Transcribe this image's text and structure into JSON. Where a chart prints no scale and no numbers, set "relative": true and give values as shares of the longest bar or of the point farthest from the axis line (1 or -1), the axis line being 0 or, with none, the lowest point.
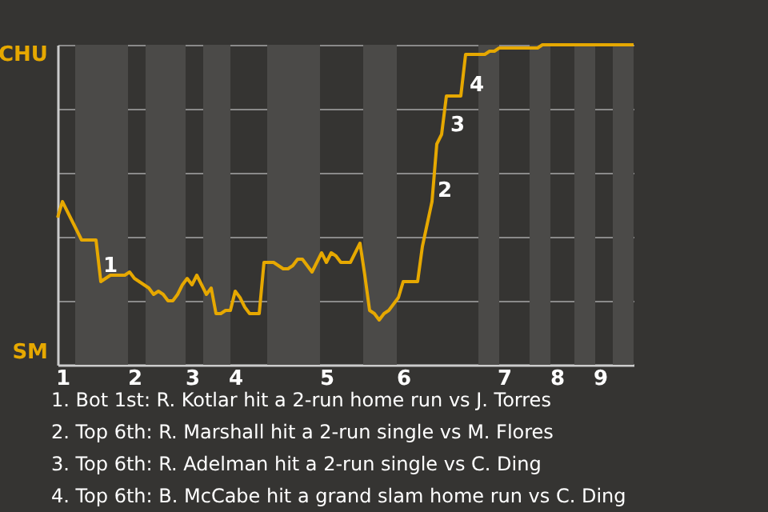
{
  "chart_data": {
    "type": "line",
    "relative": true,
    "categories": [
      null,
      "1",
      null,
      null,
      null,
      null,
      null,
      null,
      null,
      null,
      null,
      null,
      null,
      null,
      null,
      null,
      "2",
      null,
      null,
      null,
      null,
      null,
      null,
      null,
      null,
      null,
      null,
      null,
      "3",
      null,
      null,
      null,
      null,
      null,
      null,
      null,
      null,
      "4",
      null,
      null,
      null,
      null,
      null,
      null,
      null,
      null,
      null,
      null,
      null,
      null,
      null,
      null,
      null,
      null,
      null,
      null,
      "5",
      null,
      null,
      null,
      null,
      null,
      null,
      null,
      null,
      null,
      null,
      null,
      null,
      null,
      null,
      null,
      "6",
      null,
      null,
      null,
      null,
      null,
      null,
      null,
      null,
      null,
      null,
      null,
      null,
      null,
      null,
      null,
      null,
      null,
      null,
      null,
      null,
      "7",
      null,
      null,
      null,
      null,
      null,
      null,
      null,
      null,
      null,
      null,
      "8",
      null,
      null,
      null,
      null,
      null,
      null,
      null,
      null,
      "9",
      null,
      null,
      null,
      null,
      null,
      null,
      null
    ],
    "series": [
      {
        "color": "#e6a800",
        "values": [
          0.46,
          0.51,
          0.48,
          0.45,
          0.42,
          0.39,
          0.39,
          0.39,
          0.39,
          0.26,
          0.27,
          0.28,
          0.28,
          0.28,
          0.28,
          0.29,
          0.27,
          0.26,
          0.25,
          0.24,
          0.22,
          0.23,
          0.22,
          0.2,
          0.2,
          0.22,
          0.25,
          0.27,
          0.25,
          0.28,
          0.25,
          0.22,
          0.24,
          0.16,
          0.16,
          0.17,
          0.17,
          0.23,
          0.21,
          0.18,
          0.16,
          0.16,
          0.16,
          0.32,
          0.32,
          0.32,
          0.31,
          0.3,
          0.3,
          0.31,
          0.33,
          0.33,
          0.31,
          0.29,
          0.32,
          0.35,
          0.32,
          0.35,
          0.34,
          0.32,
          0.32,
          0.32,
          0.35,
          0.38,
          0.28,
          0.17,
          0.16,
          0.14,
          0.16,
          0.17,
          0.19,
          0.21,
          0.26,
          0.26,
          0.26,
          0.26,
          0.37,
          0.44,
          0.51,
          0.69,
          0.72,
          0.84,
          0.84,
          0.84,
          0.84,
          0.97,
          0.97,
          0.97,
          0.97,
          0.97,
          0.98,
          0.98,
          0.99,
          0.99,
          0.99,
          0.99,
          0.99,
          0.99,
          0.99,
          0.99,
          0.99,
          1,
          1,
          1,
          1,
          1,
          1,
          1,
          1,
          1,
          1,
          1,
          1,
          1,
          1,
          1,
          1,
          1,
          1,
          1,
          1
        ]
      }
    ],
    "grid": "y",
    "marker": "none",
    "line_style": "solid",
    "annotations": [
      "CHU",
      "SM",
      "1",
      "2",
      "3",
      "4",
      "1. Bot 1st: R. Kotlar hit a 2-run home run vs J. Torres",
      "2. Top 6th: R. Marshall hit a 2-run single vs M. Flores",
      "3. Top 6th: R. Adelman hit a 2-run single vs C. Ding",
      "4. Top 6th: B. McCabe hit a grand slam home run vs C. Ding"
    ]
  }
}
